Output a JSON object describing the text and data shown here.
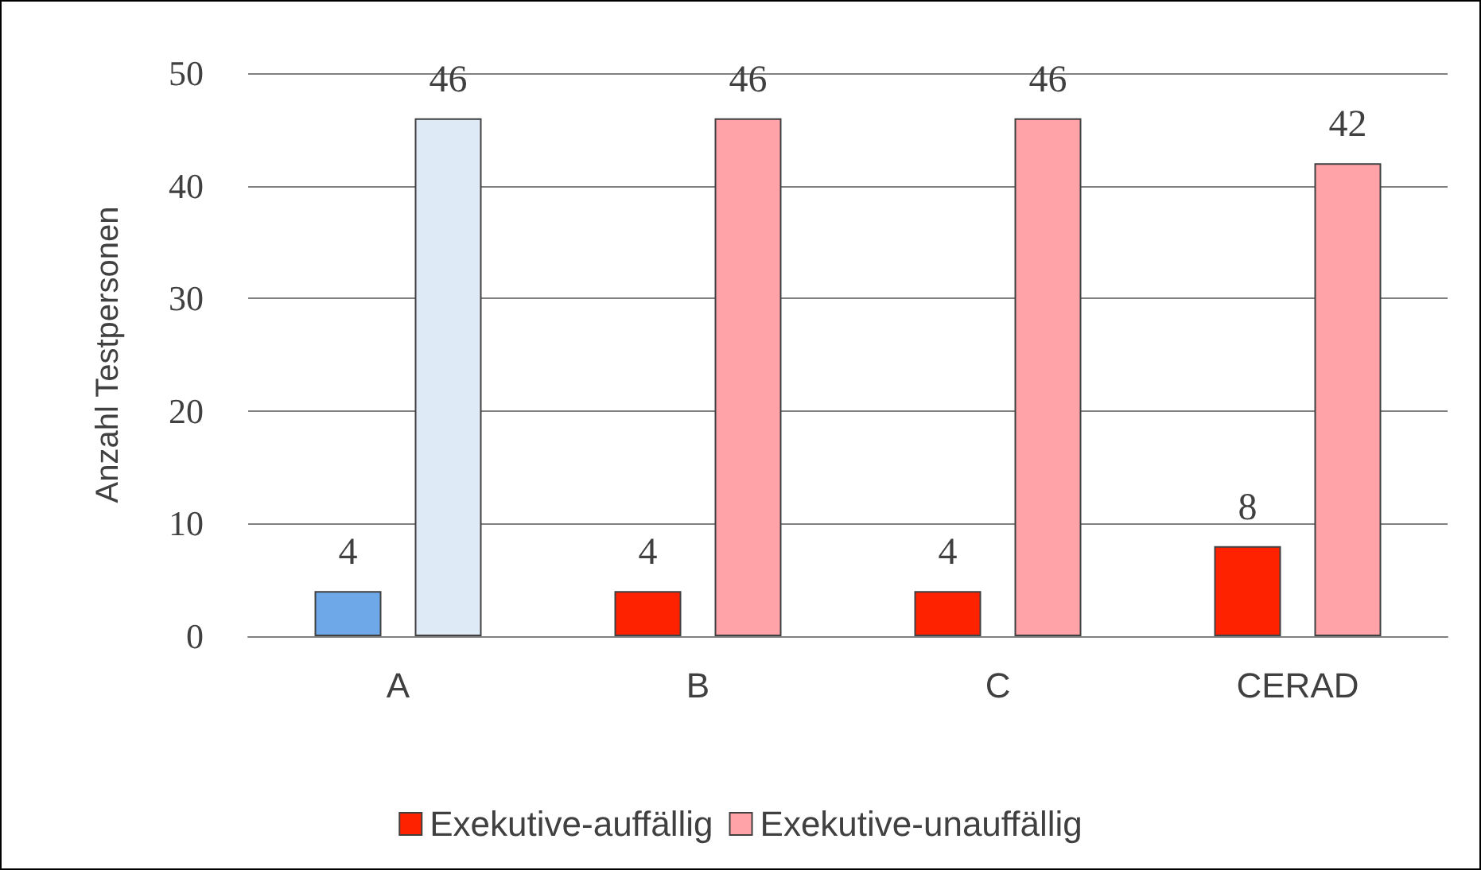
{
  "chart_data": {
    "type": "bar",
    "ylabel": "Anzahl Testpersonen",
    "categories": [
      "A",
      "B",
      "C",
      "CERAD"
    ],
    "series": [
      {
        "name": "Exekutive-auffällig",
        "color": "#ff2200",
        "colors": [
          "#6fa8e8",
          "#ff2200",
          "#ff2200",
          "#ff2200"
        ],
        "values": [
          4,
          4,
          4,
          8
        ]
      },
      {
        "name": "Exekutive-unauffällig",
        "color": "#ffa3a8",
        "colors": [
          "#deebf7",
          "#ffa3a8",
          "#ffa3a8",
          "#ffa3a8"
        ],
        "values": [
          46,
          46,
          46,
          42
        ]
      }
    ],
    "ylim": [
      0,
      50
    ],
    "yticks": [
      0,
      10,
      20,
      30,
      40,
      50
    ],
    "grid": "y",
    "legend": "bottom",
    "data_labels": true
  }
}
